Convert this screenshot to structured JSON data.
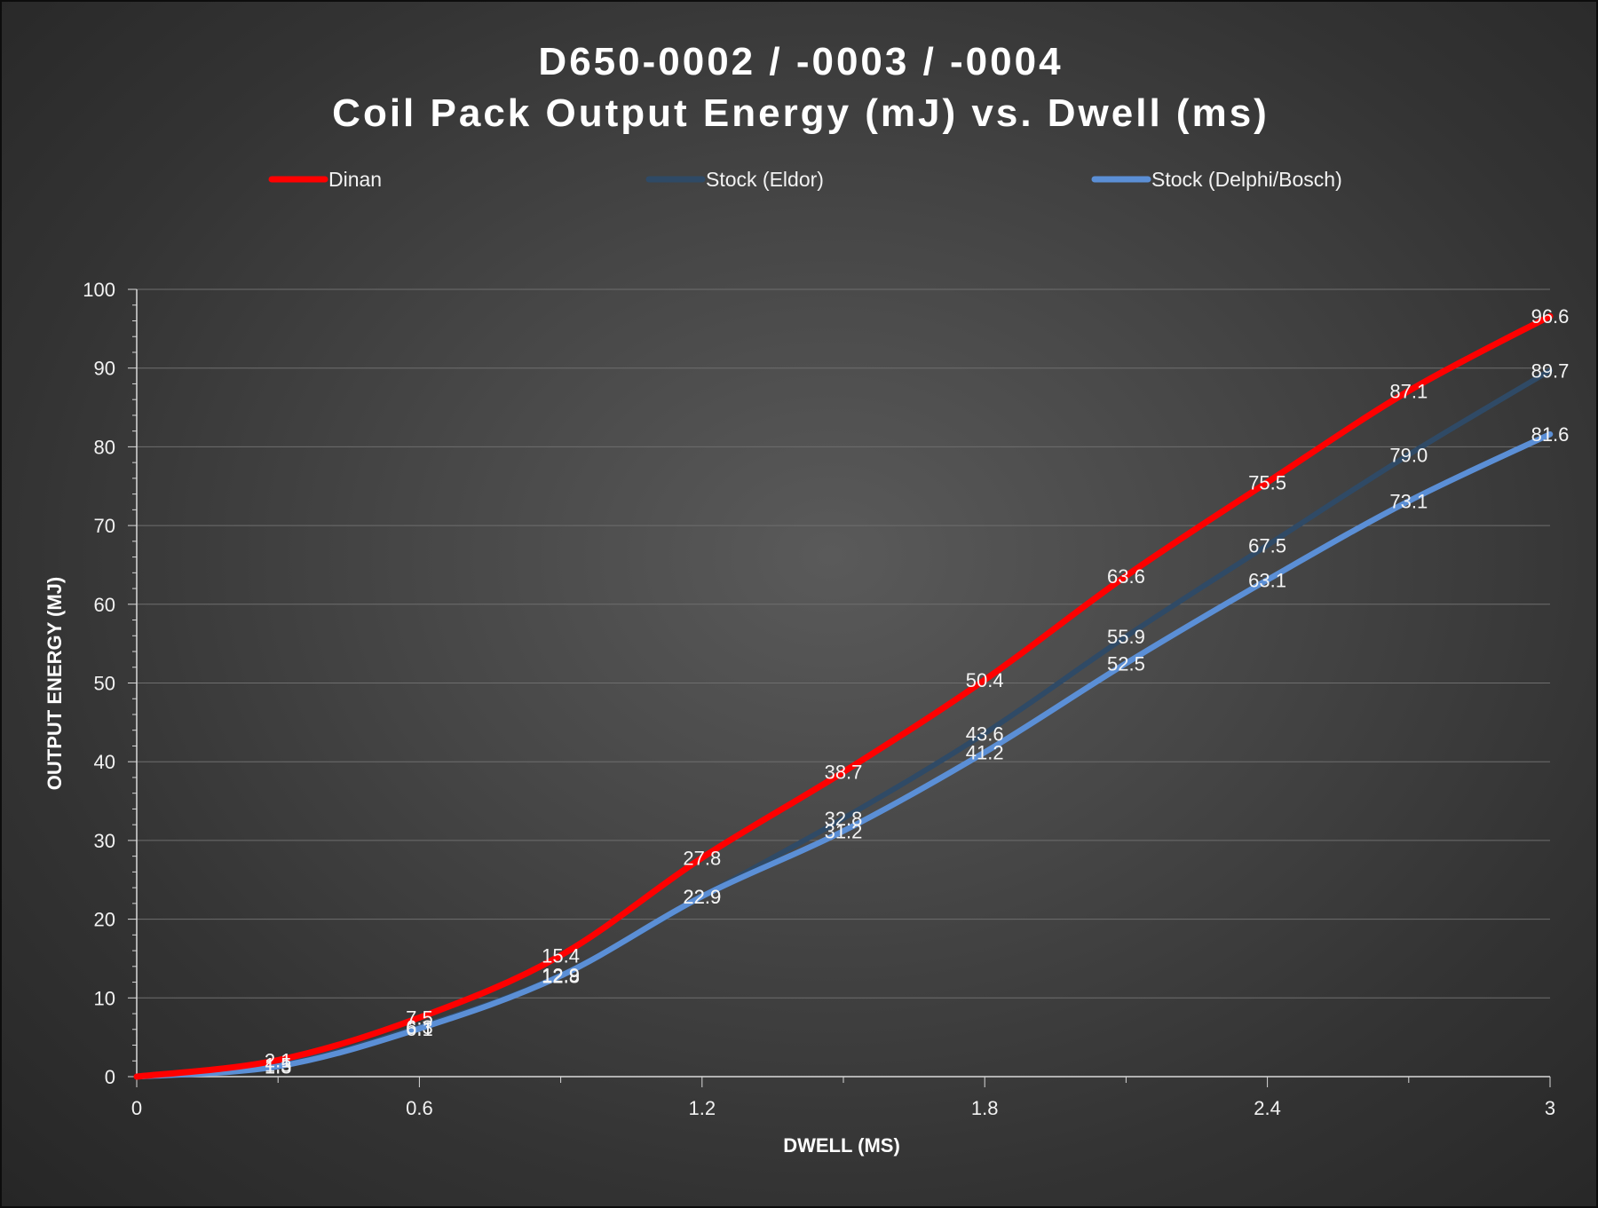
{
  "chart_data": {
    "type": "line",
    "title_line1": "D650-0002 / -0003 / -0004",
    "title_line2": "Coil Pack Output Energy (mJ) vs. Dwell (ms)",
    "xlabel": "DWELL (MS)",
    "ylabel": "OUTPUT ENERGY (MJ)",
    "xlim": [
      0,
      3
    ],
    "ylim": [
      0,
      100
    ],
    "x_ticks": [
      "0",
      "0.6",
      "1.2",
      "1.8",
      "2.4",
      "3"
    ],
    "y_ticks": [
      "0",
      "10",
      "20",
      "30",
      "40",
      "50",
      "60",
      "70",
      "80",
      "90",
      "100"
    ],
    "grid": true,
    "legend_position": "top",
    "x": [
      0,
      0.3,
      0.6,
      0.9,
      1.2,
      1.5,
      1.8,
      2.1,
      2.4,
      2.7,
      3.0
    ],
    "series": [
      {
        "name": "Dinan",
        "color": "#ff0000",
        "values": [
          0,
          2.1,
          7.5,
          15.4,
          27.8,
          38.7,
          50.4,
          63.6,
          75.5,
          87.1,
          96.6
        ],
        "labels": [
          "",
          "2.1",
          "7.5",
          "15.4",
          "27.8",
          "38.7",
          "50.4",
          "63.6",
          "75.5",
          "87.1",
          "96.6"
        ]
      },
      {
        "name": "Stock (Eldor)",
        "color": "#2f4a66",
        "values": [
          0,
          1.5,
          6.3,
          12.9,
          22.9,
          32.8,
          43.6,
          55.9,
          67.5,
          79.0,
          89.7
        ],
        "labels": [
          "",
          "1.5",
          "6.3",
          "12.9",
          "22.9",
          "32.8",
          "43.6",
          "55.9",
          "67.5",
          "79.0",
          "89.7"
        ]
      },
      {
        "name": "Stock (Delphi/Bosch)",
        "color": "#5b8fd6",
        "values": [
          0,
          1.3,
          6.1,
          12.8,
          22.9,
          31.2,
          41.2,
          52.5,
          63.1,
          73.1,
          81.6
        ],
        "labels": [
          "",
          "1.3",
          "6.1",
          "12.8",
          "22.9",
          "31.2",
          "41.2",
          "52.5",
          "63.1",
          "73.1",
          "81.6"
        ]
      }
    ]
  }
}
